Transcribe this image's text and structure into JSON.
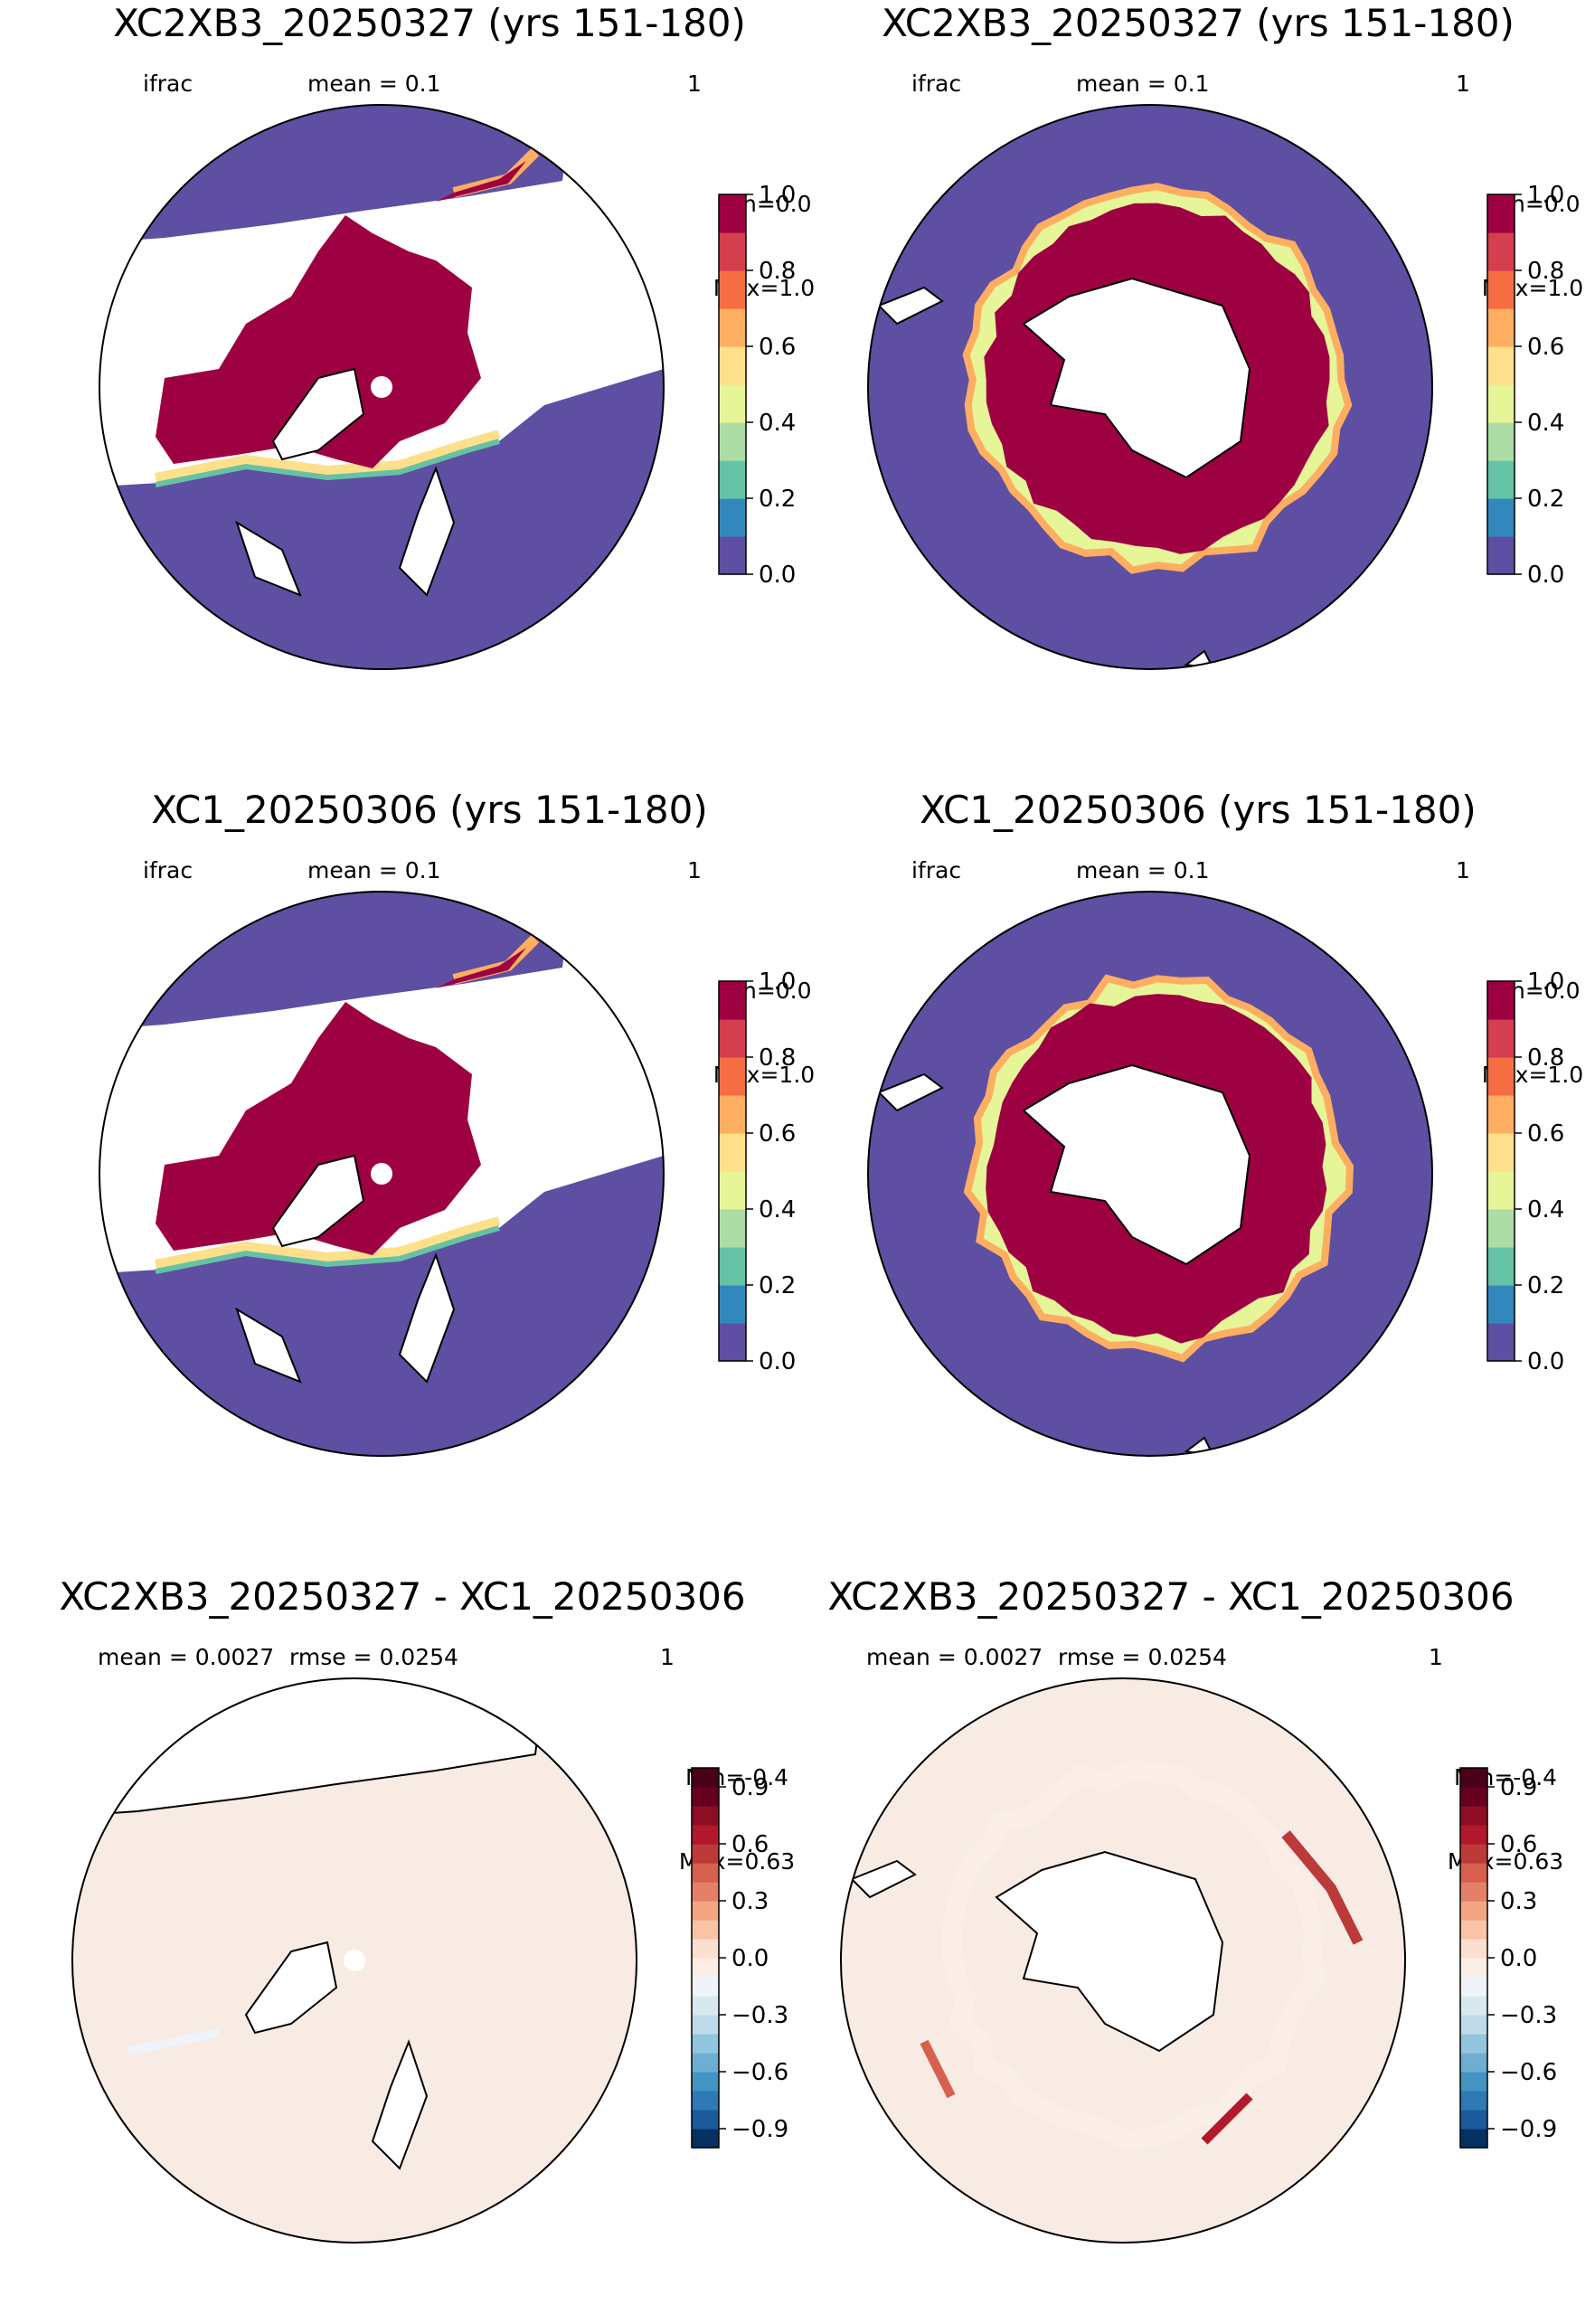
{
  "panels": [
    {
      "title": "XC2XB3_20250327 (yrs 151-180)",
      "var_label": "ifrac",
      "stat": "mean = 0.1",
      "stat2": "",
      "right_label": "1",
      "min_label": "Min=0.0",
      "max_label": "Max=1.0",
      "hemisphere": "north",
      "kind": "field",
      "colorbar": {
        "vmin": 0.0,
        "vmax": 1.0,
        "ticks": [
          "0.0",
          "0.2",
          "0.4",
          "0.6",
          "0.8",
          "1.0"
        ]
      }
    },
    {
      "title": "XC2XB3_20250327 (yrs 151-180)",
      "var_label": "ifrac",
      "stat": "mean = 0.1",
      "stat2": "",
      "right_label": "1",
      "min_label": "Min=0.0",
      "max_label": "Max=1.0",
      "hemisphere": "south",
      "kind": "field",
      "colorbar": {
        "vmin": 0.0,
        "vmax": 1.0,
        "ticks": [
          "0.0",
          "0.2",
          "0.4",
          "0.6",
          "0.8",
          "1.0"
        ]
      }
    },
    {
      "title": "XC1_20250306 (yrs 151-180)",
      "var_label": "ifrac",
      "stat": "mean = 0.1",
      "stat2": "",
      "right_label": "1",
      "min_label": "Min=0.0",
      "max_label": "Max=1.0",
      "hemisphere": "north",
      "kind": "field",
      "colorbar": {
        "vmin": 0.0,
        "vmax": 1.0,
        "ticks": [
          "0.0",
          "0.2",
          "0.4",
          "0.6",
          "0.8",
          "1.0"
        ]
      }
    },
    {
      "title": "XC1_20250306 (yrs 151-180)",
      "var_label": "ifrac",
      "stat": "mean = 0.1",
      "stat2": "",
      "right_label": "1",
      "min_label": "Min=0.0",
      "max_label": "Max=1.0",
      "hemisphere": "south",
      "kind": "field",
      "colorbar": {
        "vmin": 0.0,
        "vmax": 1.0,
        "ticks": [
          "0.0",
          "0.2",
          "0.4",
          "0.6",
          "0.8",
          "1.0"
        ]
      }
    },
    {
      "title": "XC2XB3_20250327 - XC1_20250306",
      "var_label": "",
      "stat": "mean = 0.0027",
      "stat2": "rmse = 0.0254",
      "right_label": "1",
      "min_label": "Min=-0.4",
      "max_label": "Max=0.63",
      "hemisphere": "north",
      "kind": "diff",
      "colorbar": {
        "vmin": -1.0,
        "vmax": 1.0,
        "ticks": [
          "−0.9",
          "−0.6",
          "−0.3",
          "0.0",
          "0.3",
          "0.6",
          "0.9"
        ]
      }
    },
    {
      "title": "XC2XB3_20250327 - XC1_20250306",
      "var_label": "",
      "stat": "mean = 0.0027",
      "stat2": "rmse = 0.0254",
      "right_label": "1",
      "min_label": "Min=-0.4",
      "max_label": "Max=0.63",
      "hemisphere": "south",
      "kind": "diff",
      "colorbar": {
        "vmin": -1.0,
        "vmax": 1.0,
        "ticks": [
          "−0.9",
          "−0.6",
          "−0.3",
          "0.0",
          "0.3",
          "0.6",
          "0.9"
        ]
      }
    }
  ],
  "colors": {
    "ocean_open": "#5e4fa2",
    "ice_full": "#9e0142",
    "diff_background": "#f7ebe4",
    "field_scale": [
      "#5e4fa2",
      "#3288bd",
      "#66c2a5",
      "#abdda4",
      "#e6f598",
      "#fee08b",
      "#fdae61",
      "#f46d43",
      "#d53e4f",
      "#9e0142"
    ],
    "diff_scale": [
      "#053061",
      "#1b5a9b",
      "#2f79b5",
      "#4393c3",
      "#6eaed2",
      "#92c5de",
      "#bfdaea",
      "#d8e8f1",
      "#eef4f8",
      "#fbeee7",
      "#fbe0d1",
      "#f8c3a7",
      "#f4a582",
      "#e47f6a",
      "#d6604d",
      "#bd3a3a",
      "#b2182b",
      "#8e0d25",
      "#67001f",
      "#4a0018"
    ]
  }
}
